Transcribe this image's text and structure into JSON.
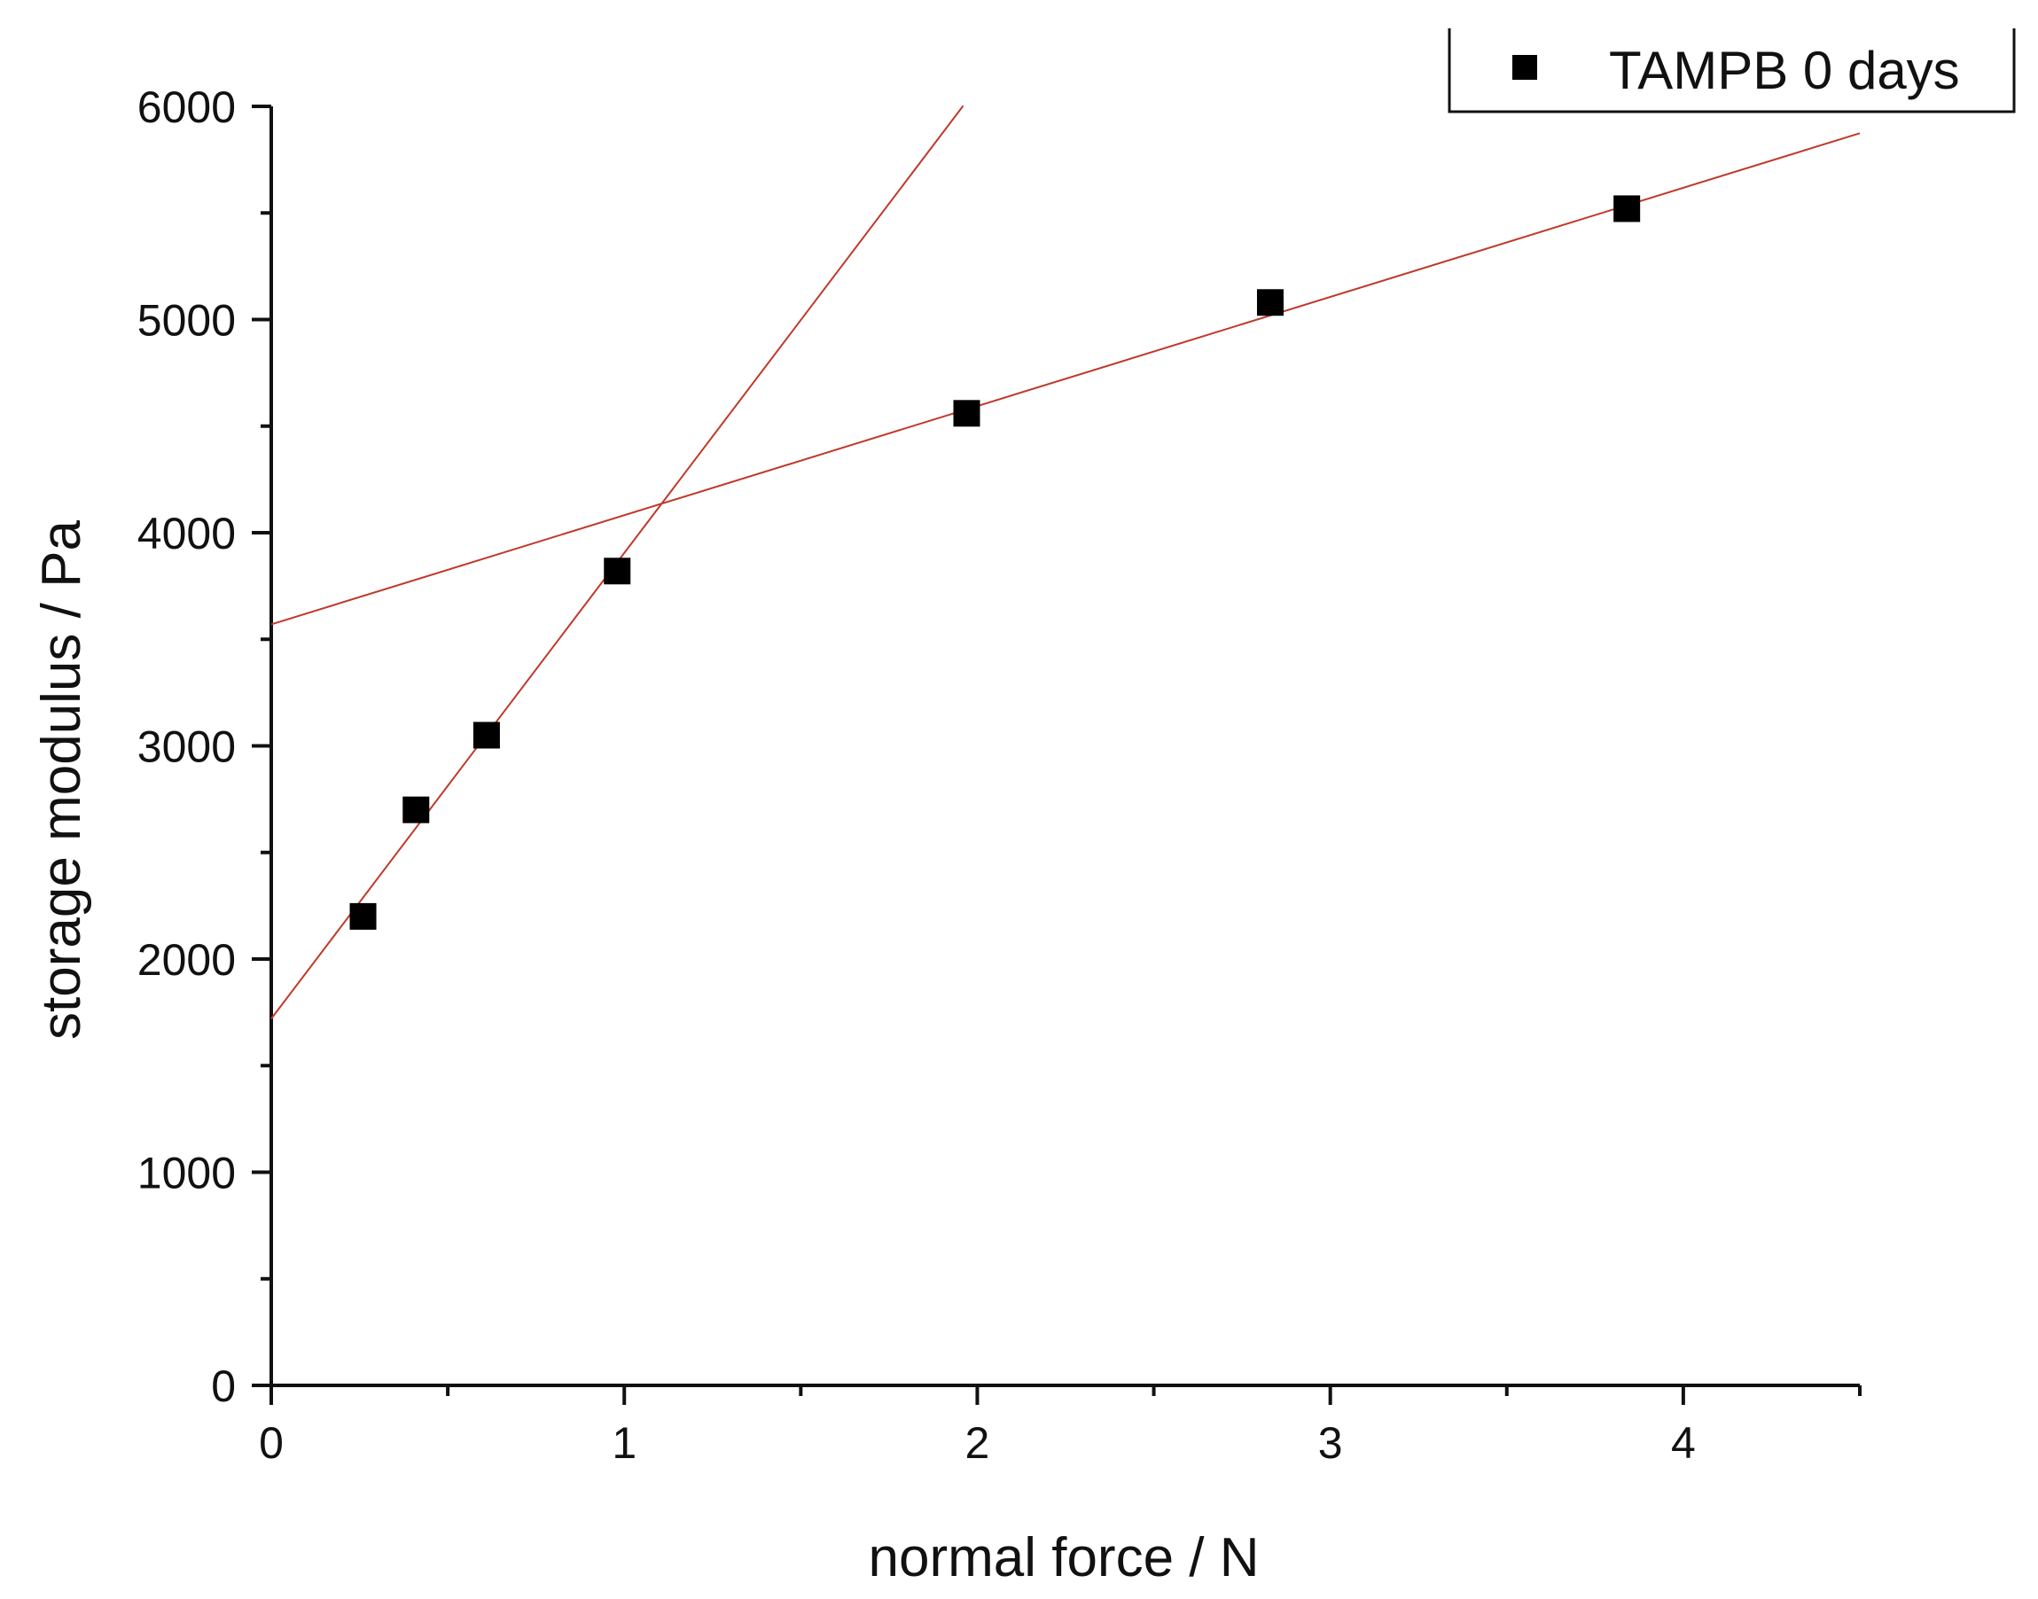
{
  "chart_data": {
    "type": "scatter",
    "title": "",
    "xlabel": "normal force / N",
    "ylabel": "storage modulus / Pa",
    "xlim": [
      0,
      4.5
    ],
    "ylim": [
      0,
      6000
    ],
    "x_ticks": [
      0,
      1,
      2,
      3,
      4
    ],
    "x_tick_labels": [
      "0",
      "1",
      "2",
      "3",
      "4"
    ],
    "x_minor_ticks": [
      0.5,
      1.5,
      2.5,
      3.5,
      4.5
    ],
    "y_ticks": [
      0,
      1000,
      2000,
      3000,
      4000,
      5000,
      6000
    ],
    "y_tick_labels": [
      "0",
      "1000",
      "2000",
      "3000",
      "4000",
      "5000",
      "6000"
    ],
    "y_minor_ticks": [
      500,
      1500,
      2500,
      3500,
      4500,
      5500
    ],
    "grid": false,
    "legend": {
      "position": "top-right",
      "entries": [
        "TAMPB 0 days"
      ]
    },
    "series": [
      {
        "name": "TAMPB 0 days",
        "marker": "square",
        "color": "#000000",
        "x": [
          0.26,
          0.41,
          0.61,
          0.98,
          1.97,
          2.83,
          3.84
        ],
        "y": [
          2200,
          2700,
          3050,
          3820,
          4560,
          5080,
          5520
        ]
      }
    ],
    "fit_lines": [
      {
        "name": "fit-low-force",
        "color": "#c0392b",
        "x_range": [
          0,
          1.96
        ],
        "intercept": 1720,
        "slope": 2185
      },
      {
        "name": "fit-high-force",
        "color": "#c0392b",
        "x_range": [
          0,
          4.5
        ],
        "intercept": 3570,
        "slope": 512
      }
    ]
  }
}
